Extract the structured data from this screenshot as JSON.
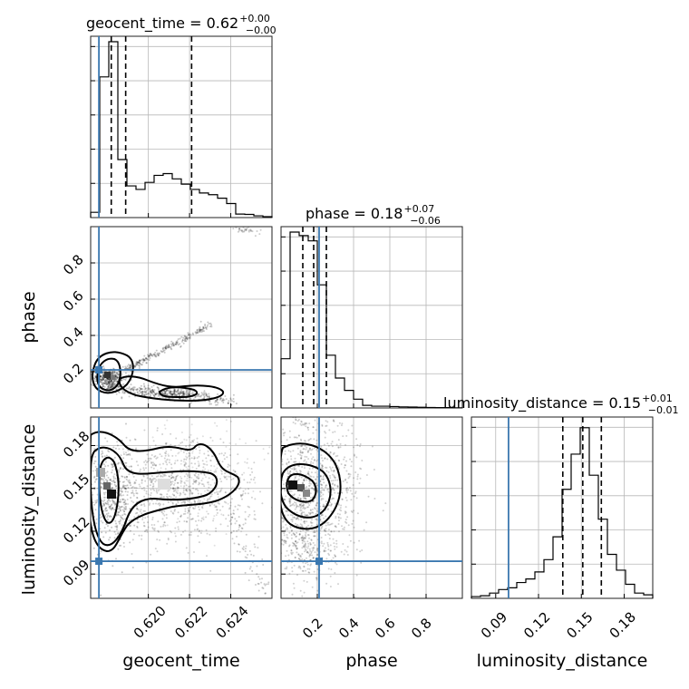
{
  "chart_data": {
    "type": "corner",
    "parameters": [
      {
        "key": "geocent_time",
        "label": "geocent_time",
        "range": [
          0.6172,
          0.626
        ],
        "ticks": [
          0.62,
          0.622,
          0.624
        ],
        "tick_labels": [
          "0.620",
          "0.622",
          "0.624"
        ],
        "title": {
          "main": "geocent_time = 0.62",
          "sup": "+0.00",
          "sub": "−0.00"
        },
        "truth": 0.6176,
        "quantiles": [
          0.6182,
          0.6189,
          0.6221
        ],
        "hist": {
          "edges": [
            0.6172,
            0.61764,
            0.61808,
            0.61852,
            0.61896,
            0.6194,
            0.61984,
            0.62028,
            0.62072,
            0.62116,
            0.6216,
            0.62204,
            0.62248,
            0.62292,
            0.62336,
            0.6238,
            0.62424,
            0.62468,
            0.62512,
            0.62556,
            0.626
          ],
          "counts": [
            0.03,
            0.8,
            1.0,
            0.33,
            0.18,
            0.16,
            0.2,
            0.24,
            0.25,
            0.22,
            0.19,
            0.16,
            0.14,
            0.13,
            0.11,
            0.08,
            0.02,
            0.018,
            0.01,
            0.005
          ]
        }
      },
      {
        "key": "phase",
        "label": "phase",
        "range": [
          0.0,
          1.0
        ],
        "ticks": [
          0.2,
          0.4,
          0.6,
          0.8
        ],
        "tick_labels": [
          "0.2",
          "0.4",
          "0.6",
          "0.8"
        ],
        "title": {
          "main": "phase = 0.18",
          "sup": "+0.07",
          "sub": "−0.06"
        },
        "truth": 0.21,
        "quantiles": [
          0.12,
          0.18,
          0.25
        ],
        "hist": {
          "edges": [
            0.0,
            0.05,
            0.1,
            0.15,
            0.2,
            0.25,
            0.3,
            0.35,
            0.4,
            0.45,
            0.5,
            0.55,
            0.6,
            0.65,
            0.7,
            0.75,
            0.8,
            0.85,
            0.9,
            0.95,
            1.0
          ],
          "counts": [
            0.28,
            1.0,
            0.98,
            0.95,
            0.7,
            0.3,
            0.17,
            0.1,
            0.05,
            0.015,
            0.01,
            0.01,
            0.008,
            0.006,
            0.005,
            0.004,
            0.003,
            0.002,
            0.002,
            0.001
          ]
        }
      },
      {
        "key": "luminosity_distance",
        "label": "luminosity_distance",
        "range": [
          0.073,
          0.2
        ],
        "ticks": [
          0.09,
          0.12,
          0.15,
          0.18
        ],
        "tick_labels": [
          "0.09",
          "0.12",
          "0.15",
          "0.18"
        ],
        "title": {
          "main": "luminosity_distance = 0.15",
          "sup": "+0.01",
          "sub": "−0.01"
        },
        "truth": 0.099,
        "quantiles": [
          0.137,
          0.151,
          0.164
        ],
        "hist": {
          "edges": [
            0.073,
            0.07935,
            0.0857,
            0.09205,
            0.0984,
            0.10475,
            0.1111,
            0.11745,
            0.1238,
            0.13015,
            0.1365,
            0.14285,
            0.1492,
            0.15555,
            0.1619,
            0.16825,
            0.1746,
            0.18095,
            0.1873,
            0.19365,
            0.2
          ],
          "counts": [
            0.01,
            0.015,
            0.03,
            0.05,
            0.06,
            0.09,
            0.11,
            0.15,
            0.22,
            0.35,
            0.62,
            0.82,
            0.97,
            0.7,
            0.45,
            0.25,
            0.16,
            0.08,
            0.03,
            0.02
          ]
        }
      }
    ],
    "truth_point_color": "#3b78b0",
    "contour_color": "#000000",
    "grid": true
  }
}
